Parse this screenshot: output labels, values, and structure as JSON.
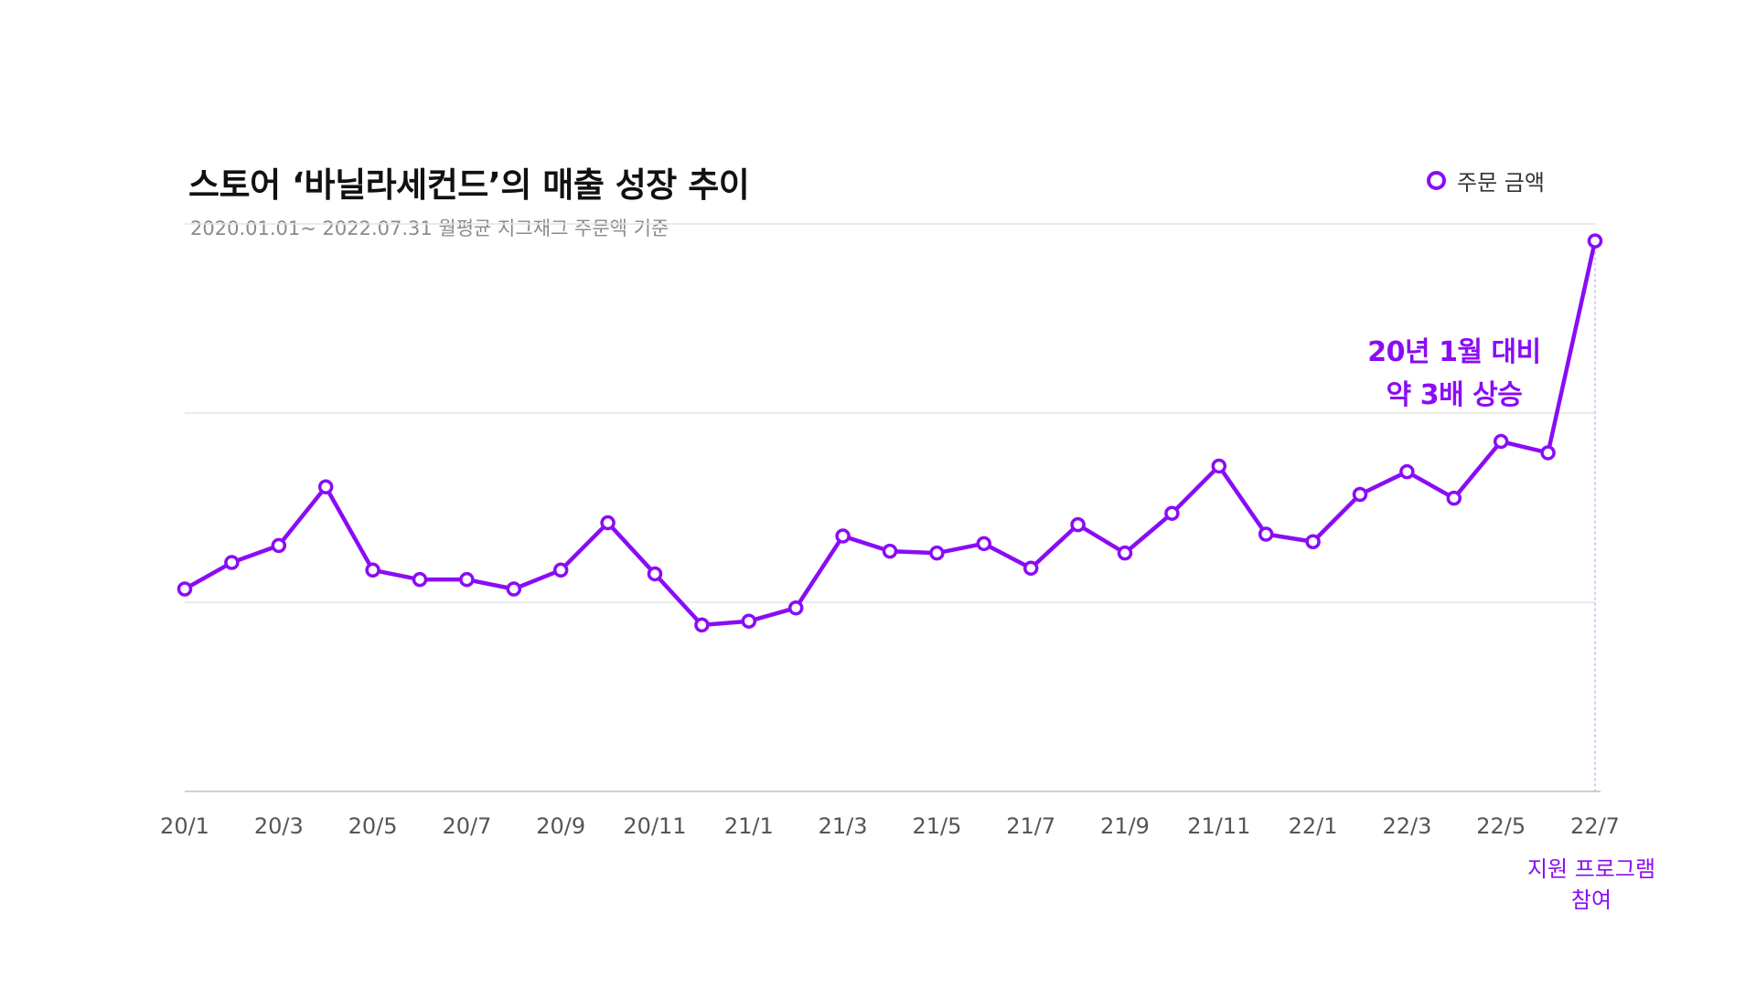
{
  "chart_data": {
    "type": "line",
    "title": "스토어 ‘바닐라세컨드’의 매출 성장 추이",
    "subtitle": "2020.01.01~ 2022.07.31 월평균 지그재그 주문액 기준",
    "xlabel": "",
    "ylabel": "",
    "grid": true,
    "legend_position": "top-right",
    "x_tick_labels": [
      "20/1",
      "20/3",
      "20/5",
      "20/7",
      "20/9",
      "20/11",
      "21/1",
      "21/3",
      "21/5",
      "21/7",
      "21/9",
      "21/11",
      "22/1",
      "22/3",
      "22/5",
      "22/7"
    ],
    "categories": [
      "20/1",
      "20/2",
      "20/3",
      "20/4",
      "20/5",
      "20/6",
      "20/7",
      "20/8",
      "20/9",
      "20/10",
      "20/11",
      "20/12",
      "21/1",
      "21/2",
      "21/3",
      "21/4",
      "21/5",
      "21/6",
      "21/7",
      "21/8",
      "21/9",
      "21/10",
      "21/11",
      "21/12",
      "22/1",
      "22/2",
      "22/3",
      "22/4",
      "22/5",
      "22/6",
      "22/7"
    ],
    "ylim": [
      0,
      3
    ],
    "series": [
      {
        "name": "주문 금액",
        "color": "#8a0cf5",
        "values": [
          1.07,
          1.21,
          1.3,
          1.61,
          1.17,
          1.12,
          1.12,
          1.07,
          1.17,
          1.42,
          1.15,
          0.88,
          0.9,
          0.97,
          1.35,
          1.27,
          1.26,
          1.31,
          1.18,
          1.41,
          1.26,
          1.47,
          1.72,
          1.36,
          1.32,
          1.57,
          1.69,
          1.55,
          1.85,
          1.79,
          2.91
        ]
      }
    ],
    "annotation": {
      "line1": "20년 1월 대비",
      "line2": "약 3배 상승"
    },
    "footnote": {
      "line1": "지원 프로그램",
      "line2": "참여"
    }
  },
  "colors": {
    "accent": "#8a0cf5",
    "grid": "#e4e4e4",
    "axis": "#cfcfcf"
  }
}
